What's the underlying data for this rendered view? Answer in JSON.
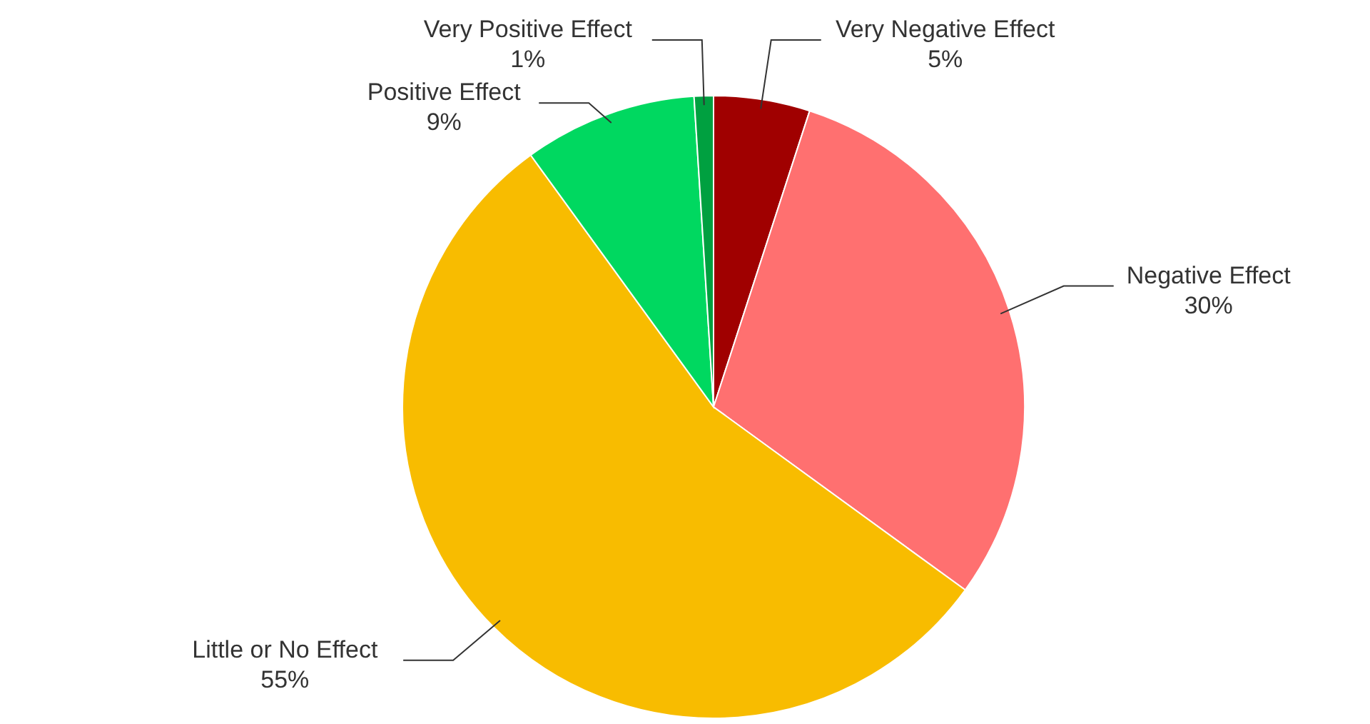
{
  "chart_data": {
    "type": "pie",
    "categories": [
      "Very Negative Effect",
      "Negative Effect",
      "Little or No Effect",
      "Positive Effect",
      "Very Positive Effect"
    ],
    "values": [
      5,
      30,
      55,
      9,
      1
    ],
    "value_labels": [
      "5%",
      "30%",
      "55%",
      "9%",
      "1%"
    ],
    "colors": [
      "#a00000",
      "#ff7070",
      "#f8bc00",
      "#00d860",
      "#00a040"
    ],
    "legend": false
  }
}
